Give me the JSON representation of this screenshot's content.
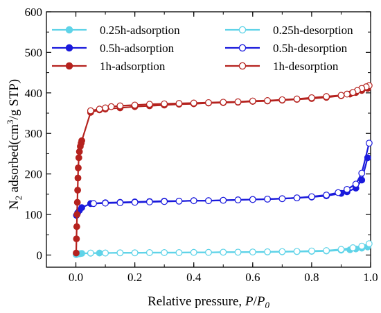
{
  "chart_data": {
    "type": "line",
    "xlabel": "Relative pressure, P/P0",
    "xlabel_parts": [
      "Relative pressure, ",
      "P",
      "/",
      "P",
      "0"
    ],
    "ylabel": "N2 adsorbed(cm3/g STP)",
    "ylabel_parts": [
      "N",
      "2",
      " adsorbed(cm",
      "3",
      "/g STP)"
    ],
    "xlim": [
      -0.1,
      1.0
    ],
    "ylim": [
      -30,
      600
    ],
    "xticks": [
      "0.0",
      "0.2",
      "0.4",
      "0.6",
      "0.8",
      "1.0"
    ],
    "yticks": [
      "0",
      "100",
      "200",
      "300",
      "400",
      "500",
      "600"
    ],
    "grid": false,
    "legend_position": "top",
    "series": [
      {
        "name": "0.25h-adsorption",
        "color": "#5fd3e8",
        "marker": "filled",
        "x": [
          0.001,
          0.003,
          0.006,
          0.01,
          0.015,
          0.02,
          0.05,
          0.08,
          0.1,
          0.15,
          0.2,
          0.25,
          0.3,
          0.35,
          0.4,
          0.45,
          0.5,
          0.55,
          0.6,
          0.65,
          0.7,
          0.75,
          0.8,
          0.85,
          0.9,
          0.93,
          0.95,
          0.97,
          0.99
        ],
        "y": [
          1,
          2,
          2.5,
          3,
          3.5,
          4,
          4.5,
          5,
          5,
          5.5,
          5.5,
          6,
          6,
          6,
          6.5,
          6.5,
          7,
          7,
          7.5,
          7.5,
          8,
          8.5,
          9,
          10,
          12,
          13,
          15,
          17,
          20
        ]
      },
      {
        "name": "0.25h-desorption",
        "color": "#5fd3e8",
        "marker": "open",
        "x": [
          0.995,
          0.97,
          0.94,
          0.9,
          0.85,
          0.8,
          0.75,
          0.7,
          0.65,
          0.6,
          0.55,
          0.5,
          0.45,
          0.4,
          0.35,
          0.3,
          0.25,
          0.2,
          0.15,
          0.1,
          0.05
        ],
        "y": [
          28,
          22,
          18,
          14,
          11,
          10,
          9,
          8.5,
          8,
          7.5,
          7,
          7,
          6.5,
          6.5,
          6,
          6,
          6,
          5.5,
          5.5,
          5,
          5
        ]
      },
      {
        "name": "0.5h-adsorption",
        "color": "#1a1adc",
        "marker": "filled",
        "x": [
          0.002,
          0.006,
          0.012,
          0.02,
          0.05,
          0.1,
          0.15,
          0.2,
          0.25,
          0.3,
          0.35,
          0.4,
          0.45,
          0.5,
          0.55,
          0.6,
          0.65,
          0.7,
          0.75,
          0.8,
          0.85,
          0.9,
          0.92,
          0.95,
          0.97,
          0.99
        ],
        "y": [
          98,
          104,
          110,
          117,
          127,
          129,
          130,
          131,
          132,
          133,
          133,
          134,
          134,
          135,
          136,
          137,
          138,
          139,
          141,
          143,
          146,
          152,
          156,
          165,
          185,
          240
        ]
      },
      {
        "name": "0.5h-desorption",
        "color": "#1a1adc",
        "marker": "open",
        "x": [
          0.995,
          0.97,
          0.95,
          0.92,
          0.89,
          0.85,
          0.8,
          0.75,
          0.7,
          0.65,
          0.6,
          0.55,
          0.5,
          0.45,
          0.4,
          0.35,
          0.3,
          0.25,
          0.2,
          0.15,
          0.1,
          0.06
        ],
        "y": [
          276,
          202,
          175,
          162,
          154,
          148,
          144,
          141,
          139,
          138,
          137,
          136,
          135,
          134,
          134,
          133,
          132,
          131,
          130,
          129,
          128,
          127
        ]
      },
      {
        "name": "1h-adsorption",
        "color": "#b5221e",
        "marker": "filled",
        "x": [
          0.001,
          0.002,
          0.003,
          0.004,
          0.005,
          0.006,
          0.007,
          0.008,
          0.01,
          0.012,
          0.015,
          0.018,
          0.02,
          0.05,
          0.08,
          0.1,
          0.15,
          0.2,
          0.25,
          0.3,
          0.35,
          0.4,
          0.45,
          0.5,
          0.55,
          0.6,
          0.65,
          0.7,
          0.75,
          0.8,
          0.85,
          0.9,
          0.93,
          0.95,
          0.97,
          0.99
        ],
        "y": [
          5,
          40,
          70,
          100,
          130,
          160,
          190,
          215,
          240,
          255,
          268,
          276,
          282,
          352,
          358,
          360,
          363,
          366,
          368,
          370,
          372,
          373,
          375,
          376,
          377,
          379,
          380,
          382,
          384,
          386,
          389,
          393,
          397,
          401,
          406,
          411
        ]
      },
      {
        "name": "1h-desorption",
        "color": "#b5221e",
        "marker": "open",
        "x": [
          0.995,
          0.985,
          0.97,
          0.955,
          0.94,
          0.92,
          0.9,
          0.85,
          0.8,
          0.75,
          0.7,
          0.65,
          0.6,
          0.55,
          0.5,
          0.45,
          0.4,
          0.35,
          0.3,
          0.25,
          0.2,
          0.15,
          0.12,
          0.1,
          0.08,
          0.05
        ],
        "y": [
          418,
          415,
          411,
          406,
          401,
          397,
          394,
          391,
          388,
          385,
          383,
          381,
          380,
          378,
          377,
          376,
          375,
          374,
          373,
          372,
          370,
          368,
          366,
          363,
          360,
          356
        ]
      }
    ]
  }
}
